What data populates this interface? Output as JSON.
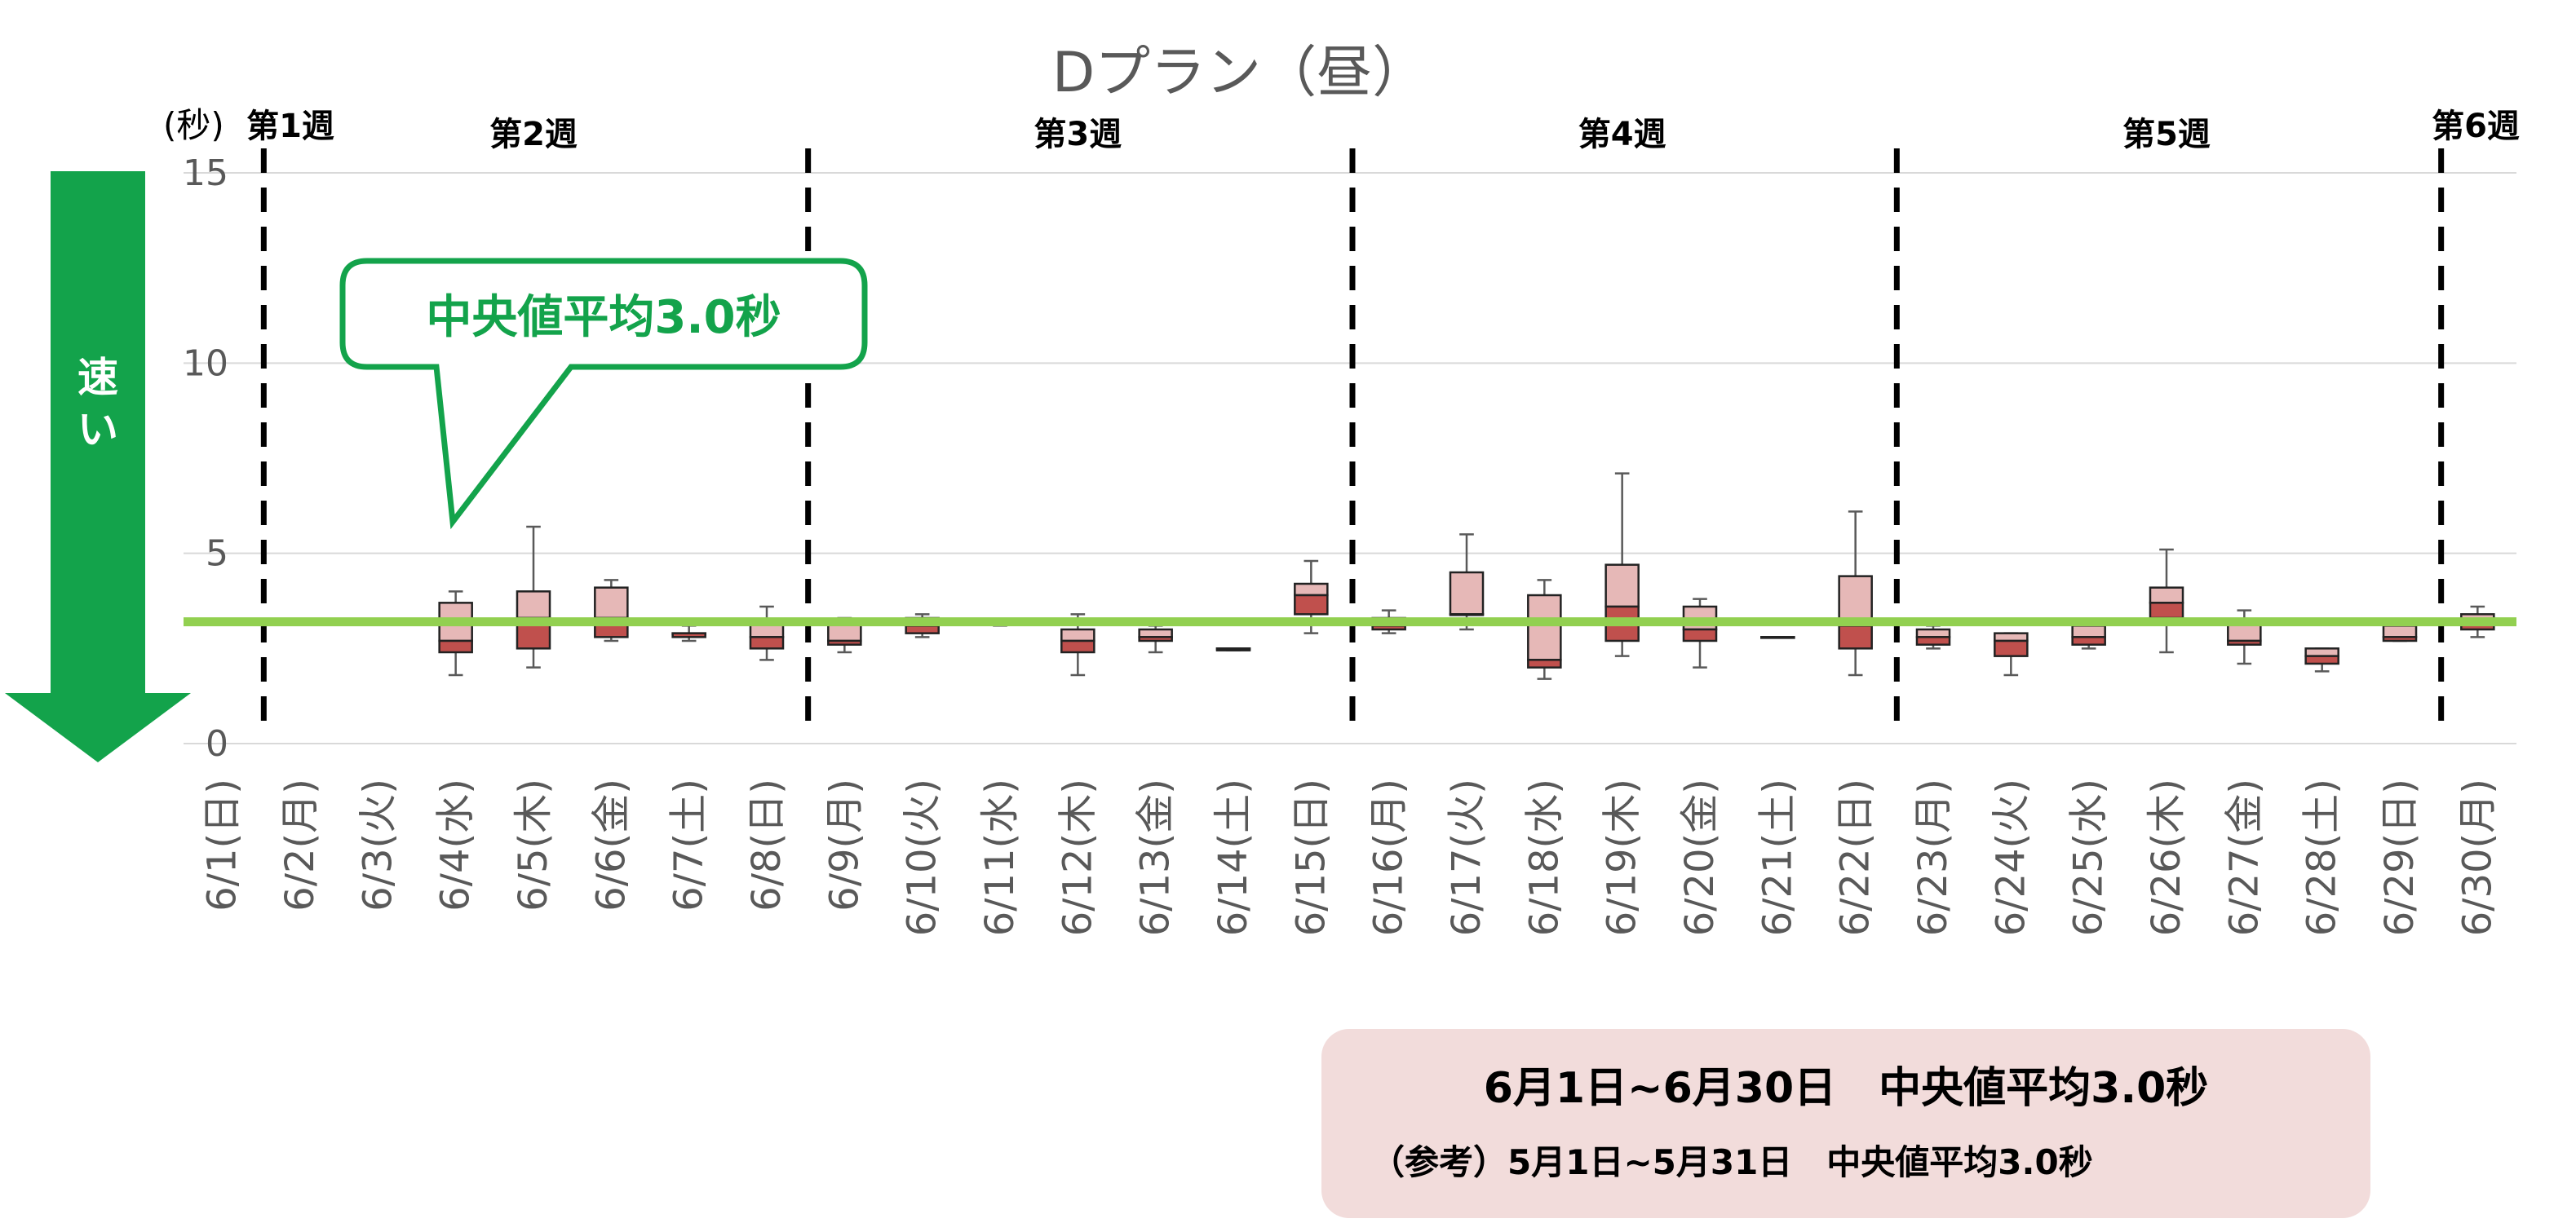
{
  "chart_data": {
    "type": "box",
    "title": "Dプラン（昼）",
    "ylabel": "(秒)",
    "ylim": [
      0,
      15
    ],
    "yticks": [
      0,
      5,
      10,
      15
    ],
    "grid": true,
    "reference_line": {
      "value": 3.2,
      "color": "#92d050"
    },
    "categories": [
      "6/1(日)",
      "6/2(月)",
      "6/3(火)",
      "6/4(水)",
      "6/5(木)",
      "6/6(金)",
      "6/7(土)",
      "6/8(日)",
      "6/9(月)",
      "6/10(火)",
      "6/11(水)",
      "6/12(木)",
      "6/13(金)",
      "6/14(土)",
      "6/15(日)",
      "6/16(月)",
      "6/17(火)",
      "6/18(水)",
      "6/19(木)",
      "6/20(金)",
      "6/21(土)",
      "6/22(日)",
      "6/23(月)",
      "6/24(火)",
      "6/25(水)",
      "6/26(木)",
      "6/27(金)",
      "6/28(土)",
      "6/29(日)",
      "6/30(月)"
    ],
    "boxes": [
      null,
      null,
      null,
      {
        "min": 1.8,
        "q1": 2.4,
        "median": 2.7,
        "q3": 3.7,
        "max": 4.0
      },
      {
        "min": 2.0,
        "q1": 2.5,
        "median": 3.3,
        "q3": 4.0,
        "max": 5.7
      },
      {
        "min": 2.7,
        "q1": 2.8,
        "median": 3.3,
        "q3": 4.1,
        "max": 4.3
      },
      {
        "min": 2.7,
        "q1": 2.8,
        "median": 2.9,
        "q3": 2.9,
        "max": 3.1
      },
      {
        "min": 2.2,
        "q1": 2.5,
        "median": 2.8,
        "q3": 3.2,
        "max": 3.6
      },
      {
        "min": 2.4,
        "q1": 2.6,
        "median": 2.7,
        "q3": 3.2,
        "max": 3.3
      },
      {
        "min": 2.8,
        "q1": 2.9,
        "median": 3.1,
        "q3": 3.3,
        "max": 3.4
      },
      {
        "min": 3.1,
        "q1": 3.15,
        "median": 3.2,
        "q3": 3.2,
        "max": 3.2
      },
      {
        "min": 1.8,
        "q1": 2.4,
        "median": 2.7,
        "q3": 3.0,
        "max": 3.4
      },
      {
        "min": 2.4,
        "q1": 2.7,
        "median": 2.8,
        "q3": 3.0,
        "max": 3.1
      },
      {
        "min": 2.45,
        "q1": 2.45,
        "median": 2.5,
        "q3": 2.5,
        "max": 2.5
      },
      {
        "min": 2.9,
        "q1": 3.4,
        "median": 3.9,
        "q3": 4.2,
        "max": 4.8
      },
      {
        "min": 2.9,
        "q1": 3.0,
        "median": 3.1,
        "q3": 3.3,
        "max": 3.5
      },
      {
        "min": 3.0,
        "q1": 3.4,
        "median": 3.4,
        "q3": 4.5,
        "max": 5.5
      },
      {
        "min": 1.7,
        "q1": 2.0,
        "median": 2.2,
        "q3": 3.9,
        "max": 4.3
      },
      {
        "min": 2.3,
        "q1": 2.7,
        "median": 3.6,
        "q3": 4.7,
        "max": 7.1
      },
      {
        "min": 2.0,
        "q1": 2.7,
        "median": 3.0,
        "q3": 3.6,
        "max": 3.8
      },
      {
        "min": 2.8,
        "q1": 2.8,
        "median": 2.8,
        "q3": 2.8,
        "max": 2.8
      },
      {
        "min": 1.8,
        "q1": 2.5,
        "median": 3.1,
        "q3": 4.4,
        "max": 6.1
      },
      {
        "min": 2.5,
        "q1": 2.6,
        "median": 2.8,
        "q3": 3.0,
        "max": 3.1
      },
      {
        "min": 1.8,
        "q1": 2.3,
        "median": 2.7,
        "q3": 2.9,
        "max": 2.9
      },
      {
        "min": 2.5,
        "q1": 2.6,
        "median": 2.8,
        "q3": 3.1,
        "max": 3.1
      },
      {
        "min": 2.4,
        "q1": 3.3,
        "median": 3.7,
        "q3": 4.1,
        "max": 5.1
      },
      {
        "min": 2.1,
        "q1": 2.6,
        "median": 2.7,
        "q3": 3.2,
        "max": 3.5
      },
      {
        "min": 1.9,
        "q1": 2.1,
        "median": 2.3,
        "q3": 2.5,
        "max": 2.5
      },
      {
        "min": 2.7,
        "q1": 2.7,
        "median": 2.8,
        "q3": 3.1,
        "max": 3.1
      },
      {
        "min": 2.8,
        "q1": 3.0,
        "median": 3.2,
        "q3": 3.4,
        "max": 3.6
      }
    ],
    "weeks": [
      {
        "label": "第1週",
        "from": 0,
        "to": 0
      },
      {
        "label": "第2週",
        "from": 1,
        "to": 7
      },
      {
        "label": "第3週",
        "from": 8,
        "to": 14
      },
      {
        "label": "第4週",
        "from": 15,
        "to": 21
      },
      {
        "label": "第5週",
        "from": 22,
        "to": 28
      },
      {
        "label": "第6週",
        "from": 29,
        "to": 29
      }
    ],
    "week_separators_before": [
      1,
      8,
      15,
      22,
      29
    ],
    "callout": "中央値平均3.0秒",
    "direction_arrow": "速い",
    "colors": {
      "box_upper": "#e6b8b7",
      "box_lower": "#c0504d",
      "whisker": "#595959",
      "grid": "#d9d9d9",
      "arrow": "#13a34b"
    }
  },
  "summary": {
    "line1": "6月1日~6月30日　中央値平均3.0秒",
    "line2": "（参考）5月1日~5月31日　中央値平均3.0秒"
  }
}
